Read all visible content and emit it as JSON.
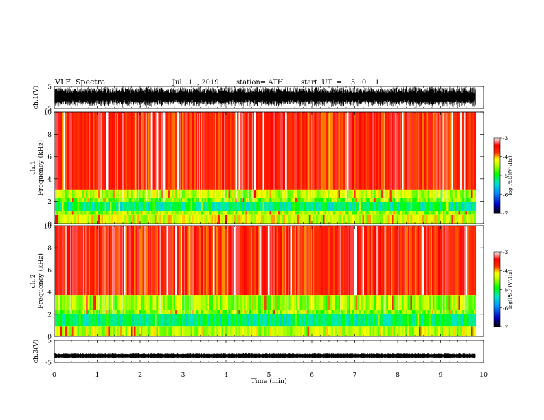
{
  "header": {
    "title": "VLF  Spectra",
    "date": "Jul.  1  , 2019",
    "station": "station= ATH",
    "start_ut": "start  UT  =    5  :0   :1"
  },
  "chart_data": [
    {
      "type": "line",
      "panel": "ch1-waveform",
      "ylabel": "ch.1(V)",
      "yticks": [
        "5",
        "-5"
      ],
      "ylim": [
        -5,
        5
      ],
      "xlim": [
        0,
        10
      ],
      "trace_end_min": 9.82,
      "trace_color": "#000000"
    },
    {
      "type": "heatmap",
      "panel": "ch1-spectrogram",
      "ylabel": "ch.1\nFrequency (kHz)",
      "yticks": [
        "10",
        "8",
        "6",
        "4",
        "2",
        "0"
      ],
      "ylim": [
        0,
        10
      ],
      "xlim": [
        0,
        10
      ],
      "data_end_min": 9.82,
      "bands_khz": [
        {
          "from": 3.0,
          "to": 10.0,
          "level": -3.6
        },
        {
          "from": 2.3,
          "to": 3.0,
          "level": -4.4
        },
        {
          "from": 1.9,
          "to": 2.3,
          "level": -4.6
        },
        {
          "from": 1.1,
          "to": 1.9,
          "level": -5.2
        },
        {
          "from": 0.8,
          "to": 1.1,
          "level": -4.5
        },
        {
          "from": 0.0,
          "to": 0.8,
          "level": -4.3
        }
      ],
      "colorbar": {
        "label": "log(PSD)(V²/Hz)",
        "ticks": [
          "-3",
          "-4",
          "-5",
          "-6",
          "-7"
        ],
        "min": -7,
        "max": -3
      }
    },
    {
      "type": "heatmap",
      "panel": "ch2-spectrogram",
      "ylabel": "ch.2\nFrequency (kHz)",
      "yticks": [
        "10",
        "8",
        "6",
        "4",
        "2",
        "0"
      ],
      "ylim": [
        0,
        10
      ],
      "xlim": [
        0,
        10
      ],
      "data_end_min": 9.82,
      "bands_khz": [
        {
          "from": 3.7,
          "to": 10.0,
          "level": -3.6
        },
        {
          "from": 2.4,
          "to": 3.7,
          "level": -4.5
        },
        {
          "from": 2.0,
          "to": 2.4,
          "level": -4.6
        },
        {
          "from": 0.9,
          "to": 2.0,
          "level": -5.2
        },
        {
          "from": 0.0,
          "to": 0.9,
          "level": -4.4
        }
      ],
      "colorbar": {
        "label": "log(PSD)(V²/Hz)",
        "ticks": [
          "-3",
          "-4",
          "-5",
          "-6",
          "-7"
        ],
        "min": -7,
        "max": -3
      }
    },
    {
      "type": "line",
      "panel": "ch3-waveform",
      "ylabel": "ch.3(V)",
      "yticks": [
        "5",
        "-5"
      ],
      "ylim": [
        -5,
        5
      ],
      "xlim": [
        0,
        10
      ],
      "trace_level_v": -2,
      "trace_end_min": 9.82,
      "trace_color": "#000000"
    }
  ],
  "xaxis": {
    "label": "Time  (min)",
    "ticks": [
      "0",
      "1",
      "2",
      "3",
      "4",
      "5",
      "6",
      "7",
      "8",
      "9",
      "10"
    ]
  },
  "colormap": [
    "#000000",
    "#0000c8",
    "#0096ff",
    "#00e6c8",
    "#00ff00",
    "#c8ff00",
    "#ffff00",
    "#ff3300",
    "#ff0000",
    "#ffffff"
  ]
}
